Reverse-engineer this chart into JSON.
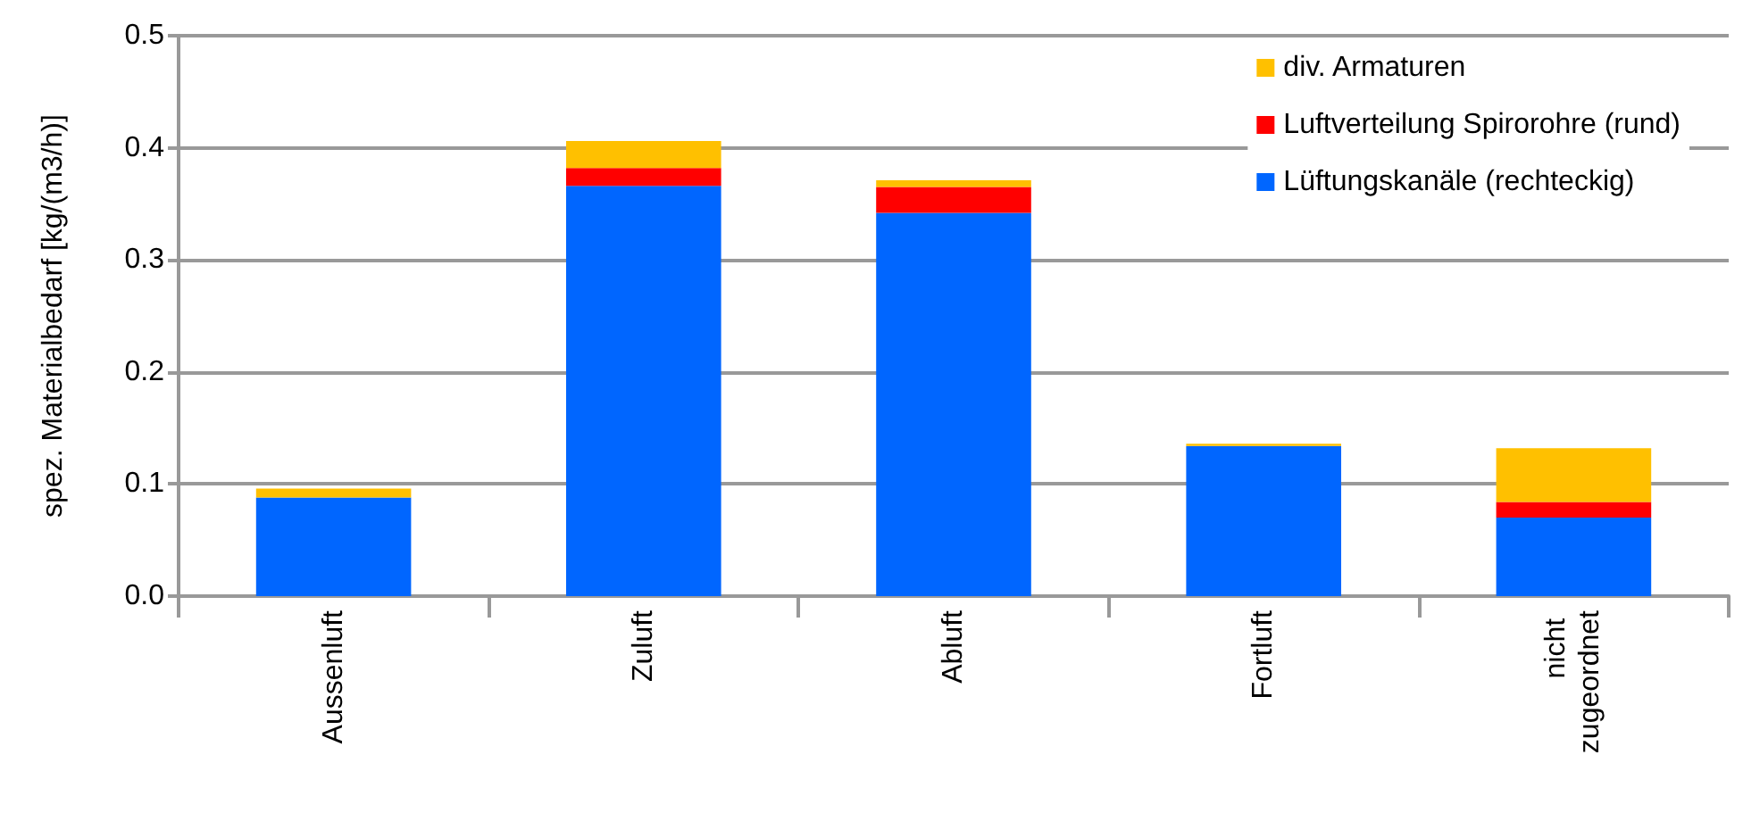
{
  "chart_data": {
    "type": "bar",
    "stacked": true,
    "ylabel": "spez. Materialbedarf [kg/(m3/h)]",
    "categories": [
      "Aussenluft",
      "Zuluft",
      "Abluft",
      "Fortluft",
      "nicht zugeordnet"
    ],
    "series": [
      {
        "name": "Lüftungskanäle (rechteckig)",
        "color": "#0066ff",
        "values": [
          0.088,
          0.366,
          0.342,
          0.134,
          0.07
        ]
      },
      {
        "name": "Luftverteilung Spirorohre (rund)",
        "color": "#ff0000",
        "values": [
          0,
          0.016,
          0.023,
          0,
          0.014
        ]
      },
      {
        "name": "div. Armaturen",
        "color": "#ffc000",
        "values": [
          0.008,
          0.024,
          0.006,
          0.002,
          0.048
        ]
      }
    ],
    "ylim": [
      0,
      0.5
    ],
    "yticks": [
      {
        "value": 0,
        "label": "0.0"
      },
      0.1,
      0.2,
      0.3,
      0.4,
      0.5
    ],
    "grid": "y",
    "legend": "top right"
  }
}
